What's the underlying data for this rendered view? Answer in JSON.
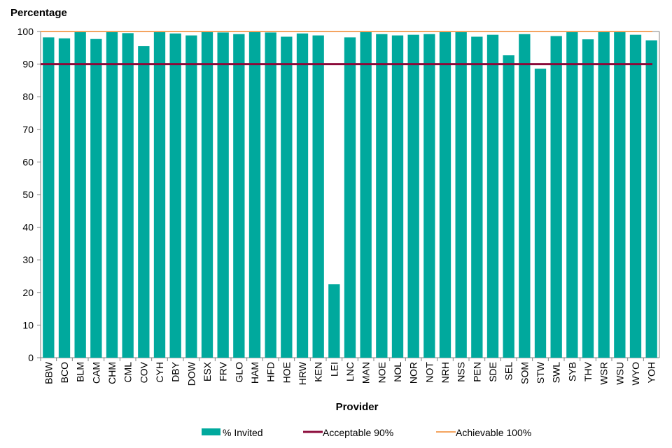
{
  "chart_data": {
    "type": "bar",
    "ylabel": "Percentage",
    "xlabel": "Provider",
    "ylim": [
      0,
      100
    ],
    "yticks": [
      0,
      10,
      20,
      30,
      40,
      50,
      60,
      70,
      80,
      90,
      100
    ],
    "grid": false,
    "legend_position": "bottom",
    "categories": [
      "BBW",
      "BCO",
      "BLM",
      "CAM",
      "CHM",
      "CML",
      "COV",
      "CYH",
      "DBY",
      "DOW",
      "ESX",
      "FRV",
      "GLO",
      "HAM",
      "HFD",
      "HOE",
      "HRW",
      "KEN",
      "LEI",
      "LNC",
      "MAN",
      "NOE",
      "NOL",
      "NOR",
      "NOT",
      "NRH",
      "NSS",
      "PEN",
      "SDE",
      "SEL",
      "SOM",
      "STW",
      "SWL",
      "SYB",
      "THV",
      "WSR",
      "WSU",
      "WYO",
      "YOH"
    ],
    "series": [
      {
        "name": "% Invited",
        "kind": "bar",
        "color": "#00a99d",
        "values": [
          98.2,
          97.9,
          99.8,
          97.7,
          99.8,
          99.5,
          95.5,
          99.8,
          99.4,
          98.8,
          99.8,
          99.7,
          99.2,
          99.8,
          99.7,
          98.4,
          99.4,
          98.8,
          22.5,
          98.2,
          99.8,
          99.2,
          98.8,
          99.0,
          99.2,
          99.8,
          99.8,
          98.4,
          99.0,
          92.7,
          99.2,
          88.6,
          98.6,
          99.8,
          97.6,
          99.8,
          99.8,
          99.0,
          97.3
        ]
      },
      {
        "name": "Acceptable 90%",
        "kind": "line",
        "color": "#8b0a3a",
        "value": 90
      },
      {
        "name": "Achievable 100%",
        "kind": "line",
        "color": "#f4a460",
        "value": 100
      }
    ]
  }
}
